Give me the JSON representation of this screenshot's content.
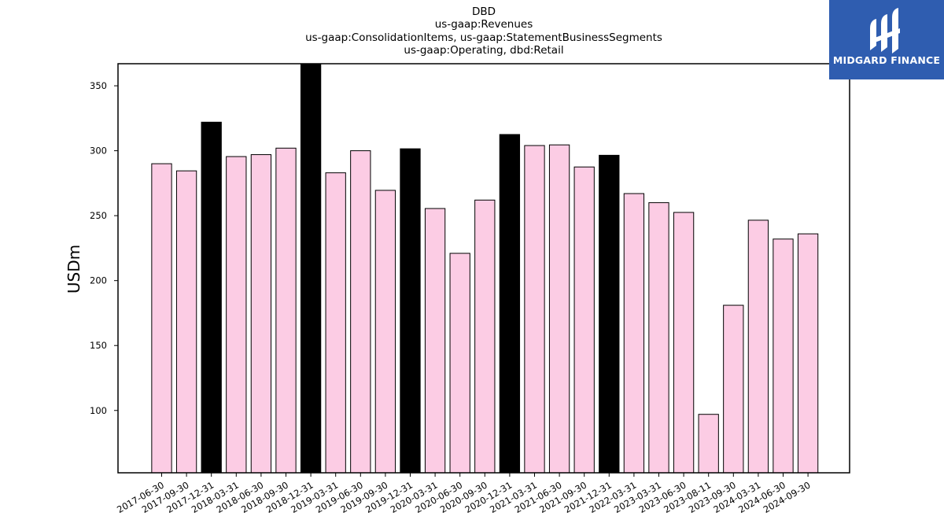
{
  "title_lines": [
    "DBD",
    "us-gaap:Revenues",
    "us-gaap:ConsolidationItems, us-gaap:StatementBusinessSegments",
    "us-gaap:Operating, dbd:Retail"
  ],
  "logo": {
    "text": "MIDGARD FINANCE",
    "background": "#2f5db0"
  },
  "colors": {
    "normal_bar": "#fccce4",
    "year_end_bar": "#000000",
    "bar_edge": "#000000"
  },
  "chart_data": {
    "type": "bar",
    "ylabel": "USDm",
    "ylim": [
      52,
      367
    ],
    "yticks": [
      100,
      150,
      200,
      250,
      300,
      350
    ],
    "grid": false,
    "categories": [
      "2017-06-30",
      "2017-09-30",
      "2017-12-31",
      "2018-03-31",
      "2018-06-30",
      "2018-09-30",
      "2018-12-31",
      "2019-03-31",
      "2019-06-30",
      "2019-09-30",
      "2019-12-31",
      "2020-03-31",
      "2020-06-30",
      "2020-09-30",
      "2020-12-31",
      "2021-03-31",
      "2021-06-30",
      "2021-09-30",
      "2021-12-31",
      "2022-03-31",
      "2023-03-31",
      "2023-06-30",
      "2023-08-11",
      "2023-09-30",
      "2024-03-31",
      "2024-06-30",
      "2024-09-30"
    ],
    "values": [
      290,
      284.5,
      322,
      295.5,
      297,
      302,
      370,
      283,
      300,
      269.5,
      301.5,
      255.5,
      221,
      262,
      312.5,
      304,
      304.5,
      287.5,
      296.5,
      267,
      260,
      252.5,
      97,
      181,
      246.5,
      232,
      236
    ],
    "highlight": [
      false,
      false,
      true,
      false,
      false,
      false,
      true,
      false,
      false,
      false,
      true,
      false,
      false,
      false,
      true,
      false,
      false,
      false,
      true,
      false,
      false,
      false,
      false,
      false,
      false,
      false,
      false
    ]
  }
}
